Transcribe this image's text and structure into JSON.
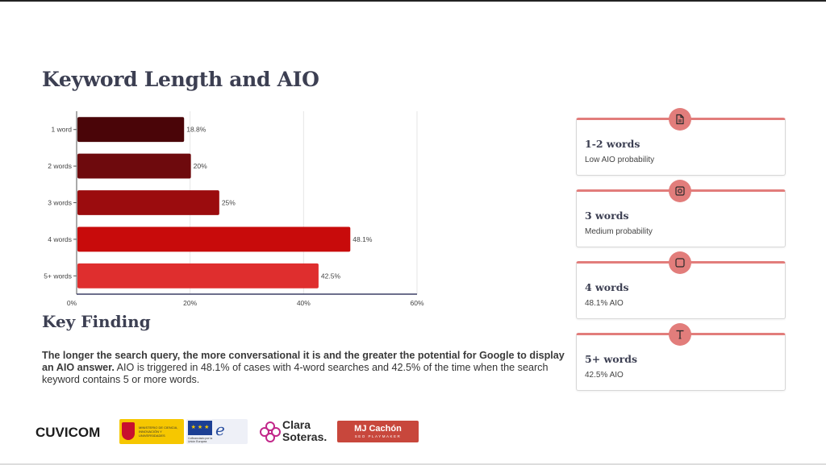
{
  "page": {
    "title": "Keyword Length and AIO"
  },
  "chart_data": {
    "type": "bar",
    "orientation": "horizontal",
    "categories": [
      "1 word",
      "2 words",
      "3 words",
      "4 words",
      "5+ words"
    ],
    "values": [
      18.8,
      20,
      25,
      48.1,
      42.5
    ],
    "value_labels": [
      "18.8%",
      "20%",
      "25%",
      "48.1%",
      "42.5%"
    ],
    "colors": [
      "#4a0508",
      "#6e0a0d",
      "#9b0c0e",
      "#c80b0b",
      "#df2e2e"
    ],
    "xlim": [
      0,
      60
    ],
    "x_ticks": [
      0,
      20,
      40,
      60
    ],
    "x_tick_labels": [
      "0%",
      "20%",
      "40%",
      "60%"
    ],
    "grid": true,
    "title": "",
    "xlabel": "",
    "ylabel": ""
  },
  "key_finding": {
    "heading": "Key Finding",
    "bold_text": "The longer the search query, the more conversational it is and the greater the potential for Google to display an AIO answer.",
    "text": " AIO is triggered in 48.1% of cases with 4-word searches and 42.5% of the time when the search keyword contains 5 or more words."
  },
  "cards": [
    {
      "icon": "document-icon",
      "title": "1-2 words",
      "subtitle": "Low AIO probability"
    },
    {
      "icon": "framed-circle-icon",
      "title": "3 words",
      "subtitle": "Medium probability"
    },
    {
      "icon": "square-icon",
      "title": "4 words",
      "subtitle": "48.1% AIO"
    },
    {
      "icon": "text-t-icon",
      "title": "5+ words",
      "subtitle": "42.5% AIO"
    }
  ],
  "logos": {
    "cuvicom": "CUVICOM",
    "ministerio": "MINISTERIO DE CIENCIA, INNOVACIÓN Y UNIVERSIDADES",
    "eu": "Cofinanciado por la Unión Europea",
    "clara": "Clara Soteras.",
    "mj_cachon": "MJ Cachón",
    "mj_sub": "SEO PLAYMAKER"
  },
  "colors": {
    "accent": "#e27d7b",
    "title": "#3c3f52"
  }
}
